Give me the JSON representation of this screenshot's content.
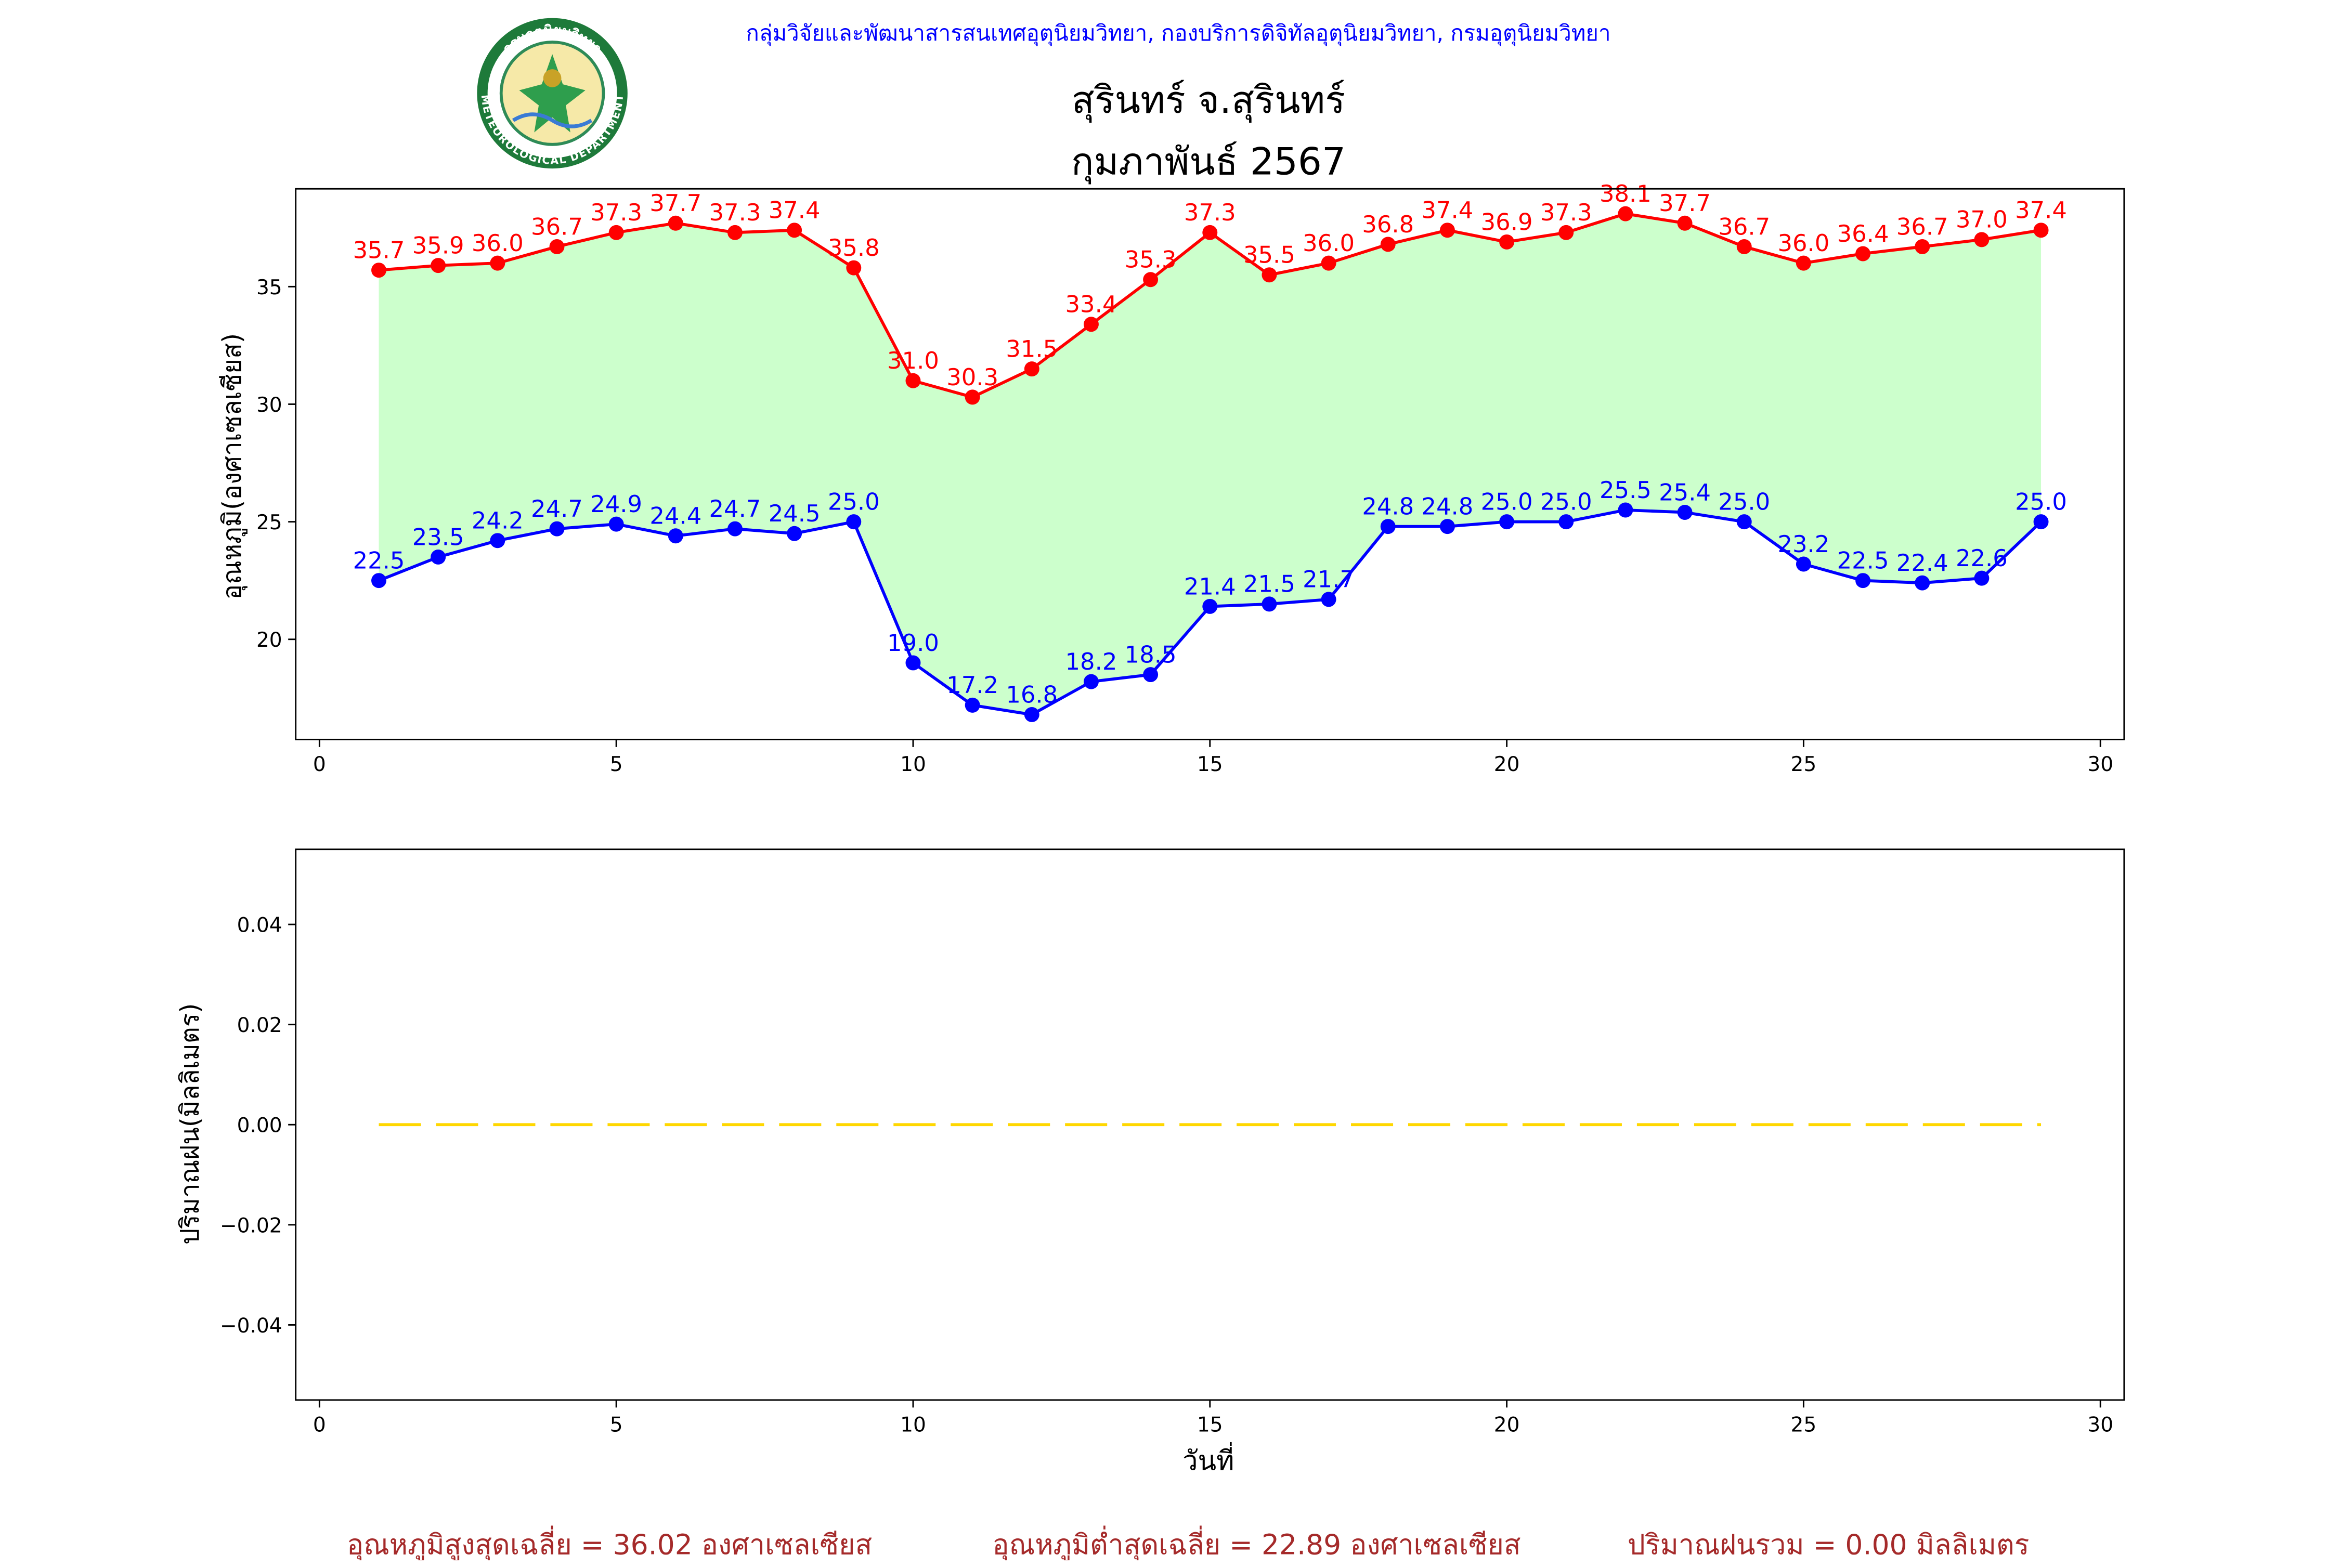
{
  "header": {
    "department": "กลุ่มวิจัยและพัฒนาสารสนเทศอุตุนิยมวิทยา, กองบริการดิจิทัลอุตุนิยมวิทยา, กรมอุตุนิยมวิทยา",
    "station": "สุรินทร์ จ.สุรินทร์",
    "period": "กุมภาพันธ์ 2567",
    "logo_text_top": "กรมอุตุนิยมวิทยา",
    "logo_text_bottom": "METEOROLOGICAL DEPARTMENT"
  },
  "colors": {
    "max": "#ff0000",
    "min": "#0000ff",
    "fill": "#ccffcc",
    "rain": "#ffd700",
    "department": "#0000ff",
    "summary": "#a52a2a"
  },
  "chart_data": [
    {
      "type": "line",
      "ylabel": "อุณหภูมิ(องศาเซลเซียส)",
      "xlabel": "",
      "x": [
        1,
        2,
        3,
        4,
        5,
        6,
        7,
        8,
        9,
        10,
        11,
        12,
        13,
        14,
        15,
        16,
        17,
        18,
        19,
        20,
        21,
        22,
        23,
        24,
        25,
        26,
        27,
        28,
        29
      ],
      "series": [
        {
          "values": [
            35.7,
            35.9,
            36.0,
            36.7,
            37.3,
            37.7,
            37.3,
            37.4,
            35.8,
            31.0,
            30.3,
            31.5,
            33.4,
            35.3,
            37.3,
            35.5,
            36.0,
            36.8,
            37.4,
            36.9,
            37.3,
            38.1,
            37.7,
            36.7,
            36.0,
            36.4,
            36.7,
            37.0,
            37.4
          ]
        },
        {
          "values": [
            22.5,
            23.5,
            24.2,
            24.7,
            24.9,
            24.4,
            24.7,
            24.5,
            25.0,
            19.0,
            17.2,
            16.8,
            18.2,
            18.5,
            21.4,
            21.5,
            21.7,
            24.8,
            24.8,
            25.0,
            25.0,
            25.5,
            25.4,
            25.0,
            23.2,
            22.5,
            22.4,
            22.6,
            25.0
          ]
        }
      ],
      "xlim": [
        -0.4,
        30.4
      ],
      "ylim": [
        15.74,
        39.16
      ],
      "xticks": [
        0,
        5,
        10,
        15,
        20,
        25,
        30
      ],
      "yticks": [
        20,
        25,
        30,
        35
      ]
    },
    {
      "type": "line",
      "ylabel": "ปริมาณฝน(มิลลิเมตร)",
      "xlabel": "วันที่",
      "x": [
        1,
        2,
        3,
        4,
        5,
        6,
        7,
        8,
        9,
        10,
        11,
        12,
        13,
        14,
        15,
        16,
        17,
        18,
        19,
        20,
        21,
        22,
        23,
        24,
        25,
        26,
        27,
        28,
        29
      ],
      "series": [
        {
          "values": [
            0,
            0,
            0,
            0,
            0,
            0,
            0,
            0,
            0,
            0,
            0,
            0,
            0,
            0,
            0,
            0,
            0,
            0,
            0,
            0,
            0,
            0,
            0,
            0,
            0,
            0,
            0,
            0,
            0
          ]
        }
      ],
      "xlim": [
        -0.4,
        30.4
      ],
      "ylim": [
        -0.055,
        0.055
      ],
      "xticks": [
        0,
        5,
        10,
        15,
        20,
        25,
        30
      ],
      "yticks": [
        -0.04,
        -0.02,
        0.0,
        0.02,
        0.04
      ],
      "ytick_labels": [
        "−0.04",
        "−0.02",
        "0.00",
        "0.02",
        "0.04"
      ]
    }
  ],
  "summary": {
    "avg_max": "อุณหภูมิสูงสุดเฉลี่ย = 36.02 องศาเซลเซียส",
    "avg_min": "อุณหภูมิต่ำสุดเฉลี่ย = 22.89 องศาเซลเซียส",
    "total_rain": "ปริมาณฝนรวม = 0.00 มิลลิเมตร"
  }
}
